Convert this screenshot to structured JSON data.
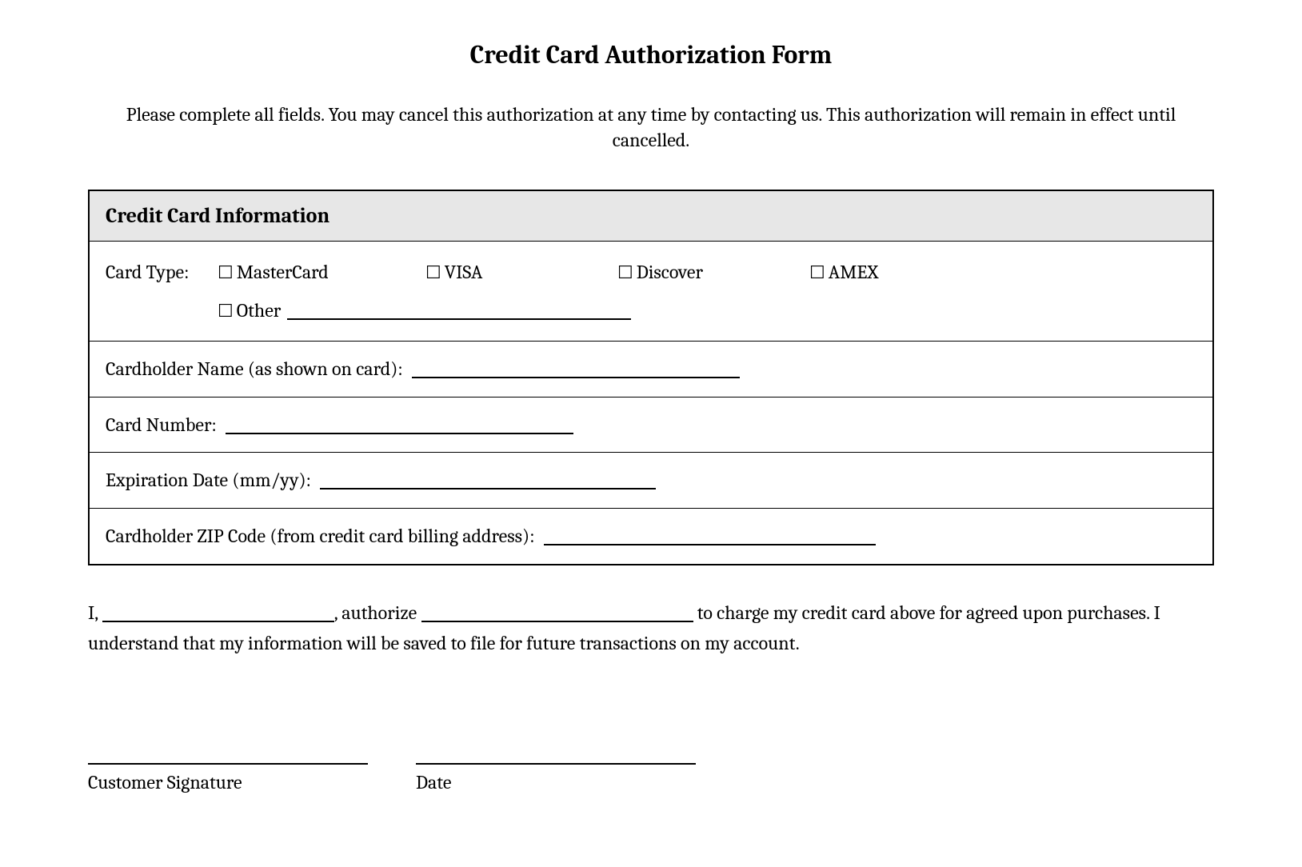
{
  "form": {
    "title": "Credit Card Authorization Form",
    "instructions": "Please complete all fields. You may cancel this authorization at any time by contacting us. This authorization will remain in effect until cancelled.",
    "section_header": "Credit Card Information",
    "fields": {
      "card_type_label": "Card Type:",
      "card_types": {
        "mastercard": "MasterCard",
        "visa": "VISA",
        "discover": "Discover",
        "amex": "AMEX",
        "other": "Other"
      },
      "cardholder_name_label": "Cardholder Name (as shown on card):",
      "card_number_label": "Card Number:",
      "expiration_label": "Expiration Date (mm/yy):",
      "zip_label": "Cardholder ZIP Code (from credit card billing address):"
    },
    "authorization": {
      "prefix": "I,",
      "mid1": ", authorize",
      "mid2": "to charge my credit card above for agreed upon purchases. I understand that my information will be saved to file for future transactions on my account."
    },
    "signature": {
      "customer_label": "Customer Signature",
      "date_label": "Date"
    }
  },
  "styling": {
    "background_color": "#ffffff",
    "text_color": "#000000",
    "header_bg_color": "#e7e7e7",
    "border_color": "#000000",
    "title_fontsize": 32,
    "body_fontsize": 24,
    "section_header_fontsize": 26,
    "checkbox_glyph": "☐",
    "font_family": "Cambria, Georgia, serif"
  }
}
